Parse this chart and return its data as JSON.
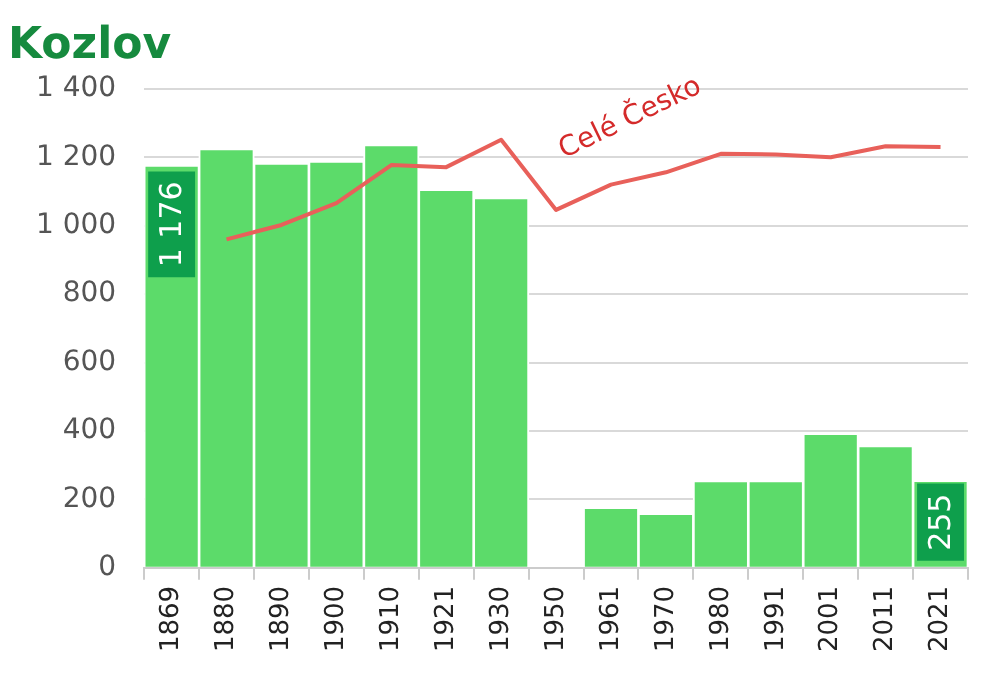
{
  "chart_data": {
    "type": "bar",
    "title": "Kozlov",
    "categories": [
      "1869",
      "1880",
      "1890",
      "1900",
      "1910",
      "1921",
      "1930",
      "1950",
      "1961",
      "1970",
      "1980",
      "1991",
      "2001",
      "2011",
      "2021"
    ],
    "series": [
      {
        "color": "#5cdb6a",
        "values": [
          1176,
          1224,
          1182,
          1188,
          1236,
          1105,
          1081,
          null,
          176,
          158,
          254,
          254,
          392,
          356,
          255
        ],
        "value_labels": [
          "1 176",
          null,
          null,
          null,
          null,
          null,
          null,
          null,
          null,
          null,
          null,
          null,
          null,
          null,
          "255"
        ]
      },
      {
        "type": "line",
        "name": "Celé Česko",
        "color": "#e8605a",
        "values": [
          null,
          960,
          1002,
          1066,
          1177,
          1171,
          1251,
          1046,
          1120,
          1156,
          1210,
          1208,
          1200,
          1232,
          1230
        ]
      }
    ],
    "ylim": [
      0,
      1400
    ],
    "yticks": [
      0,
      200,
      400,
      600,
      800,
      {
        "value": 1000,
        "label": "1 000"
      },
      {
        "value": 1200,
        "label": "1 200"
      },
      {
        "value": 1400,
        "label": "1 400"
      }
    ],
    "grid": "y",
    "legend": false,
    "marker": "none",
    "line_style": "solid"
  }
}
